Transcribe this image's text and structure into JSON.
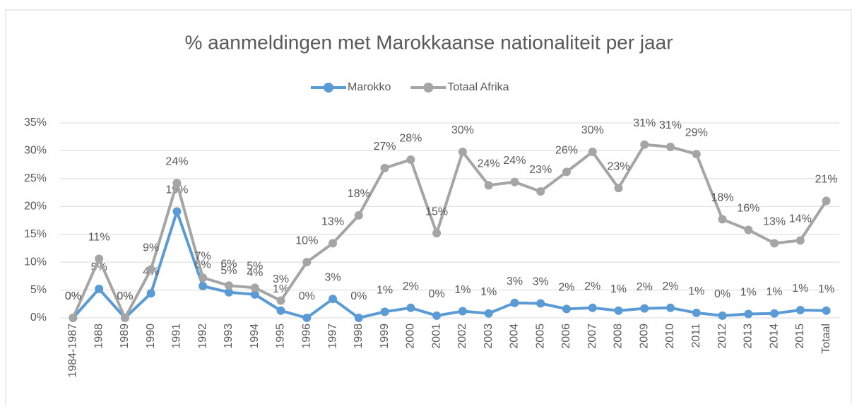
{
  "chart_data": {
    "type": "line",
    "title": "% aanmeldingen met Marokkaanse nationaliteit per jaar",
    "categories": [
      "1984-1987",
      "1988",
      "1989",
      "1990",
      "1991",
      "1992",
      "1993",
      "1994",
      "1995",
      "1996",
      "1997",
      "1998",
      "1999",
      "2000",
      "2001",
      "2002",
      "2003",
      "2004",
      "2005",
      "2006",
      "2007",
      "2008",
      "2009",
      "2010",
      "2011",
      "2012",
      "2013",
      "2014",
      "2015",
      "Totaal"
    ],
    "series": [
      {
        "name": "Marokko",
        "color": "#5b9bd5",
        "values": [
          0,
          5.2,
          0,
          4.4,
          19.1,
          5.7,
          4.6,
          4.2,
          1.3,
          0,
          3.4,
          0,
          1.1,
          1.8,
          0.4,
          1.2,
          0.8,
          2.7,
          2.6,
          1.6,
          1.8,
          1.3,
          1.7,
          1.8,
          0.9,
          0.4,
          0.7,
          0.8,
          1.4,
          1.3
        ],
        "value_labels": [
          "0%",
          "5%",
          "0%",
          "4%",
          "19%",
          "6%",
          "5%",
          "4%",
          "1%",
          "0%",
          "3%",
          "0%",
          "1%",
          "2%",
          "0%",
          "1%",
          "1%",
          "3%",
          "3%",
          "2%",
          "2%",
          "1%",
          "2%",
          "2%",
          "1%",
          "0%",
          "1%",
          "1%",
          "1%",
          "1%"
        ]
      },
      {
        "name": "Totaal Afrika",
        "color": "#a5a5a5",
        "values": [
          0,
          10.6,
          0,
          8.7,
          24.2,
          7.2,
          5.8,
          5.4,
          3.1,
          10.0,
          13.4,
          18.4,
          26.9,
          28.4,
          15.2,
          29.8,
          23.8,
          24.4,
          22.7,
          26.2,
          29.8,
          23.3,
          31.1,
          30.7,
          29.4,
          17.7,
          15.8,
          13.4,
          13.9,
          21.0
        ],
        "value_labels": [
          "0%",
          "11%",
          "0%",
          "9%",
          "24%",
          "7%",
          "6%",
          "5%",
          "3%",
          "10%",
          "13%",
          "18%",
          "27%",
          "28%",
          "15%",
          "30%",
          "24%",
          "24%",
          "23%",
          "26%",
          "30%",
          "23%",
          "31%",
          "31%",
          "29%",
          "18%",
          "16%",
          "13%",
          "14%",
          "21%"
        ]
      }
    ],
    "ylim": [
      0,
      35
    ],
    "yticks": [
      {
        "value": 0,
        "label": "0%"
      },
      {
        "value": 5,
        "label": "5%"
      },
      {
        "value": 10,
        "label": "10%"
      },
      {
        "value": 15,
        "label": "15%"
      },
      {
        "value": 20,
        "label": "20%"
      },
      {
        "value": 25,
        "label": "25%"
      },
      {
        "value": 30,
        "label": "30%"
      },
      {
        "value": 35,
        "label": "35%"
      }
    ],
    "grid": true,
    "legend": "top"
  }
}
